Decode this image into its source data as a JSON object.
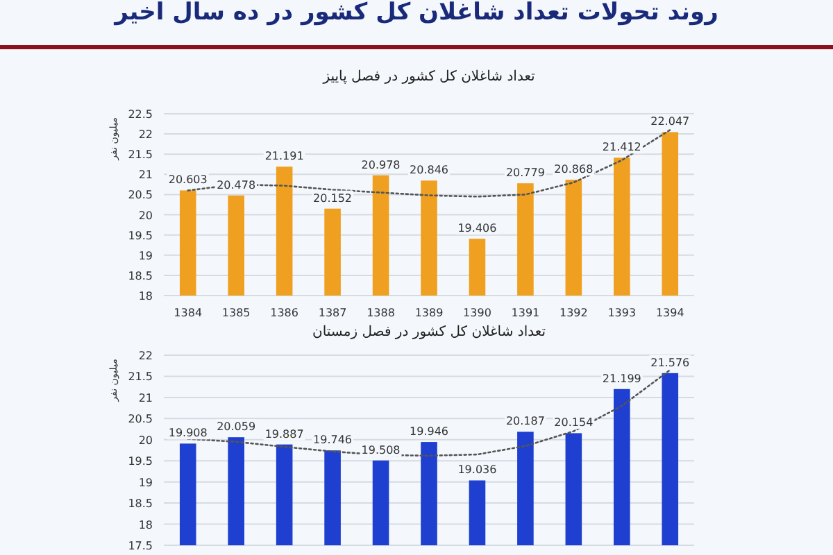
{
  "chart_data": [
    {
      "type": "bar",
      "title": "تعداد شاغلان کل کشور در فصل پاییز",
      "ylabel": "میلیون نفر",
      "annotations": [
        "روند تحولات تعداد شاغلان کل کشور در ده سال اخیر"
      ],
      "categories": [
        "1384",
        "1385",
        "1386",
        "1387",
        "1388",
        "1389",
        "1390",
        "1391",
        "1392",
        "1393",
        "1394"
      ],
      "series": [
        {
          "color": "#f0a020",
          "values": [
            20.603,
            20.478,
            21.191,
            20.152,
            20.978,
            20.846,
            19.406,
            20.779,
            20.868,
            21.412,
            22.047
          ],
          "value_labels": [
            "20.603",
            "20.478",
            "21.191",
            "20.152",
            "20.978",
            "20.846",
            "19.406",
            "20.779",
            "20.868",
            "21.412",
            "22.047"
          ]
        },
        {
          "type": "line",
          "color": "#555555",
          "line_style": "dotted",
          "values": [
            20.6,
            20.75,
            20.72,
            20.62,
            20.55,
            20.48,
            20.45,
            20.5,
            20.8,
            21.35,
            22.1
          ]
        }
      ],
      "ylim": [
        18,
        22.5
      ],
      "yticks": [
        18,
        18.5,
        19,
        19.5,
        20,
        20.5,
        21,
        21.5,
        22,
        22.5
      ],
      "grid": "y"
    },
    {
      "type": "bar",
      "title": "تعداد شاغلان کل کشور در فصل زمستان",
      "ylabel": "میلیون نفر",
      "categories": [
        null,
        null,
        null,
        null,
        null,
        null,
        null,
        null,
        null,
        null,
        null
      ],
      "series": [
        {
          "color": "#1f3fd0",
          "values": [
            19.908,
            20.059,
            19.887,
            19.746,
            19.508,
            19.946,
            19.036,
            20.187,
            20.154,
            21.199,
            21.576
          ],
          "value_labels": [
            "19.908",
            "20.059",
            "19.887",
            "19.746",
            "19.508",
            "19.946",
            "19.036",
            "20.187",
            "20.154",
            "21.199",
            "21.576"
          ]
        },
        {
          "type": "line",
          "color": "#555555",
          "line_style": "dotted",
          "values": [
            20.02,
            19.95,
            19.83,
            19.72,
            19.64,
            19.62,
            19.65,
            19.85,
            20.2,
            20.8,
            21.65
          ]
        }
      ],
      "ylim": [
        17.5,
        22
      ],
      "yticks": [
        17.5,
        18,
        18.5,
        19,
        19.5,
        20,
        20.5,
        21,
        21.5,
        22
      ],
      "grid": "y"
    }
  ]
}
